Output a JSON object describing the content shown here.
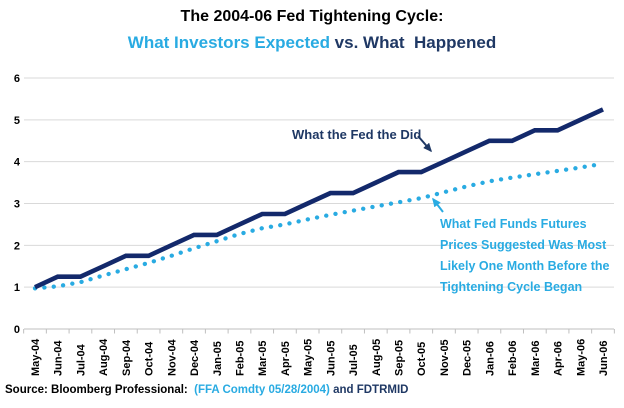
{
  "title": {
    "line1": "The 2004-06 Fed Tightening Cycle:",
    "line2_expected": "What Investors Expected",
    "line2_rest": " vs. What  Happened"
  },
  "source": {
    "prefix": "Source: Bloomberg Professional:  ",
    "highlight": "(FFA Comdty 05/28/2004)",
    "suffix": " and FDTRMID"
  },
  "annotations": {
    "fed": {
      "text": "What the Fed the Did"
    },
    "futures": {
      "lines": [
        "What Fed Funds Futures",
        "Prices Suggested Was Most",
        "Likely One Month Before the",
        "Tightening Cycle Began"
      ]
    }
  },
  "colors": {
    "navy_line": "#13296B",
    "navy_text": "#1F3864",
    "cyan": "#29ABE2",
    "grid": "#D9D9D9",
    "axis": "#BFBFBF",
    "black": "#000000"
  },
  "chart_data": {
    "type": "line",
    "title": "The 2004-06 Fed Tightening Cycle: What Investors Expected vs. What Happened",
    "xlabel": "",
    "ylabel": "",
    "ylim": [
      0,
      6
    ],
    "yticks": [
      0,
      1,
      2,
      3,
      4,
      5,
      6
    ],
    "grid": true,
    "legend_position": "inline-annotations-with-arrows",
    "categories": [
      "May-04",
      "Jun-04",
      "Jul-04",
      "Aug-04",
      "Sep-04",
      "Oct-04",
      "Nov-04",
      "Dec-04",
      "Jan-05",
      "Feb-05",
      "Mar-05",
      "Apr-05",
      "May-05",
      "Jun-05",
      "Jul-05",
      "Aug-05",
      "Sep-05",
      "Oct-05",
      "Nov-05",
      "Dec-05",
      "Jan-06",
      "Feb-06",
      "Mar-06",
      "Apr-06",
      "May-06",
      "Jun-06"
    ],
    "series": [
      {
        "name": "What the Fed the Did",
        "style": "solid",
        "color": "#13296B",
        "values": [
          1.0,
          1.25,
          1.25,
          1.5,
          1.75,
          1.75,
          2.0,
          2.25,
          2.25,
          2.5,
          2.75,
          2.75,
          3.0,
          3.25,
          3.25,
          3.5,
          3.75,
          3.75,
          4.0,
          4.25,
          4.5,
          4.5,
          4.75,
          4.75,
          5.0,
          5.25
        ]
      },
      {
        "name": "What Fed Funds Futures Prices Suggested Was Most Likely One Month Before the Tightening Cycle Began",
        "style": "dotted",
        "color": "#29ABE2",
        "values": [
          0.97,
          1.02,
          1.12,
          1.28,
          1.43,
          1.58,
          1.75,
          1.93,
          2.1,
          2.27,
          2.41,
          2.5,
          2.62,
          2.73,
          2.83,
          2.93,
          3.03,
          3.13,
          3.27,
          3.41,
          3.53,
          3.62,
          3.7,
          3.78,
          3.86,
          3.95
        ]
      }
    ]
  }
}
